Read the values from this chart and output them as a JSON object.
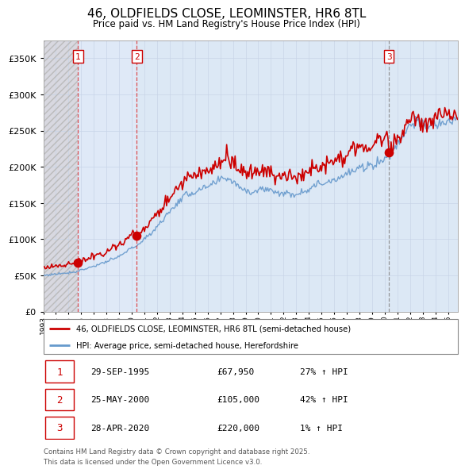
{
  "title": "46, OLDFIELDS CLOSE, LEOMINSTER, HR6 8TL",
  "subtitle": "Price paid vs. HM Land Registry's House Price Index (HPI)",
  "legend_line1": "46, OLDFIELDS CLOSE, LEOMINSTER, HR6 8TL (semi-detached house)",
  "legend_line2": "HPI: Average price, semi-detached house, Herefordshire",
  "footer": "Contains HM Land Registry data © Crown copyright and database right 2025.\nThis data is licensed under the Open Government Licence v3.0.",
  "transactions": [
    {
      "num": 1,
      "date": "29-SEP-1995",
      "price": 67950,
      "hpi_change": "27% ↑ HPI",
      "year": 1995.75
    },
    {
      "num": 2,
      "date": "25-MAY-2000",
      "price": 105000,
      "hpi_change": "42% ↑ HPI",
      "year": 2000.4
    },
    {
      "num": 3,
      "date": "28-APR-2020",
      "price": 220000,
      "hpi_change": "1% ↑ HPI",
      "year": 2020.33
    }
  ],
  "sale_color": "#cc0000",
  "hpi_color": "#6699cc",
  "ylim": [
    0,
    375000
  ],
  "yticks": [
    0,
    50000,
    100000,
    150000,
    200000,
    250000,
    300000,
    350000
  ],
  "xmin": 1993.0,
  "xmax": 2025.75
}
